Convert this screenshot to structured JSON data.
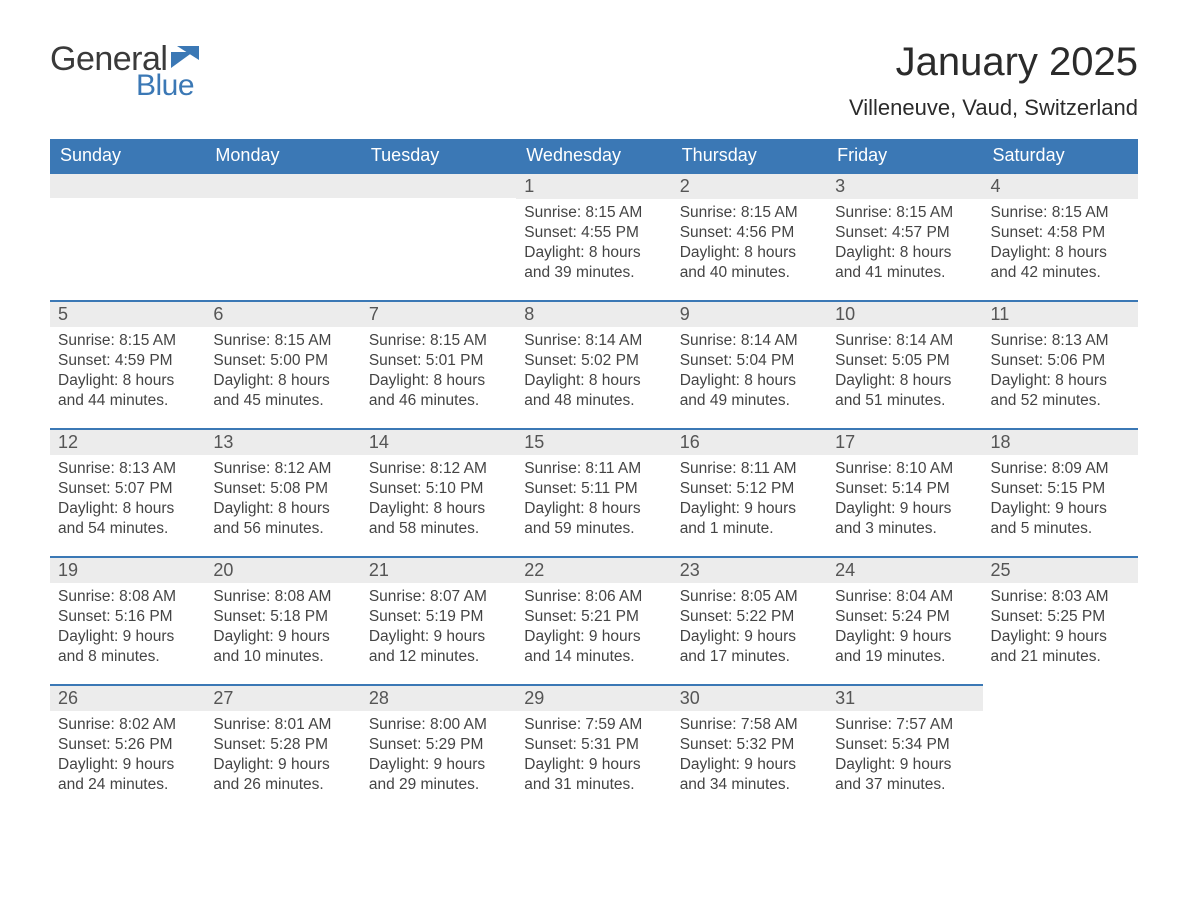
{
  "logo": {
    "general": "General",
    "blue": "Blue"
  },
  "header": {
    "title": "January 2025",
    "location": "Villeneuve, Vaud, Switzerland"
  },
  "colors": {
    "header_blue": "#3b78b5",
    "daynum_bg": "#ececec",
    "text_header": "#ffffff",
    "page_bg": "#ffffff"
  },
  "weekdays": [
    "Sunday",
    "Monday",
    "Tuesday",
    "Wednesday",
    "Thursday",
    "Friday",
    "Saturday"
  ],
  "weeks": [
    [
      null,
      null,
      null,
      {
        "day": "1",
        "sunrise": "Sunrise: 8:15 AM",
        "sunset": "Sunset: 4:55 PM",
        "daylight": "Daylight: 8 hours and 39 minutes."
      },
      {
        "day": "2",
        "sunrise": "Sunrise: 8:15 AM",
        "sunset": "Sunset: 4:56 PM",
        "daylight": "Daylight: 8 hours and 40 minutes."
      },
      {
        "day": "3",
        "sunrise": "Sunrise: 8:15 AM",
        "sunset": "Sunset: 4:57 PM",
        "daylight": "Daylight: 8 hours and 41 minutes."
      },
      {
        "day": "4",
        "sunrise": "Sunrise: 8:15 AM",
        "sunset": "Sunset: 4:58 PM",
        "daylight": "Daylight: 8 hours and 42 minutes."
      }
    ],
    [
      {
        "day": "5",
        "sunrise": "Sunrise: 8:15 AM",
        "sunset": "Sunset: 4:59 PM",
        "daylight": "Daylight: 8 hours and 44 minutes."
      },
      {
        "day": "6",
        "sunrise": "Sunrise: 8:15 AM",
        "sunset": "Sunset: 5:00 PM",
        "daylight": "Daylight: 8 hours and 45 minutes."
      },
      {
        "day": "7",
        "sunrise": "Sunrise: 8:15 AM",
        "sunset": "Sunset: 5:01 PM",
        "daylight": "Daylight: 8 hours and 46 minutes."
      },
      {
        "day": "8",
        "sunrise": "Sunrise: 8:14 AM",
        "sunset": "Sunset: 5:02 PM",
        "daylight": "Daylight: 8 hours and 48 minutes."
      },
      {
        "day": "9",
        "sunrise": "Sunrise: 8:14 AM",
        "sunset": "Sunset: 5:04 PM",
        "daylight": "Daylight: 8 hours and 49 minutes."
      },
      {
        "day": "10",
        "sunrise": "Sunrise: 8:14 AM",
        "sunset": "Sunset: 5:05 PM",
        "daylight": "Daylight: 8 hours and 51 minutes."
      },
      {
        "day": "11",
        "sunrise": "Sunrise: 8:13 AM",
        "sunset": "Sunset: 5:06 PM",
        "daylight": "Daylight: 8 hours and 52 minutes."
      }
    ],
    [
      {
        "day": "12",
        "sunrise": "Sunrise: 8:13 AM",
        "sunset": "Sunset: 5:07 PM",
        "daylight": "Daylight: 8 hours and 54 minutes."
      },
      {
        "day": "13",
        "sunrise": "Sunrise: 8:12 AM",
        "sunset": "Sunset: 5:08 PM",
        "daylight": "Daylight: 8 hours and 56 minutes."
      },
      {
        "day": "14",
        "sunrise": "Sunrise: 8:12 AM",
        "sunset": "Sunset: 5:10 PM",
        "daylight": "Daylight: 8 hours and 58 minutes."
      },
      {
        "day": "15",
        "sunrise": "Sunrise: 8:11 AM",
        "sunset": "Sunset: 5:11 PM",
        "daylight": "Daylight: 8 hours and 59 minutes."
      },
      {
        "day": "16",
        "sunrise": "Sunrise: 8:11 AM",
        "sunset": "Sunset: 5:12 PM",
        "daylight": "Daylight: 9 hours and 1 minute."
      },
      {
        "day": "17",
        "sunrise": "Sunrise: 8:10 AM",
        "sunset": "Sunset: 5:14 PM",
        "daylight": "Daylight: 9 hours and 3 minutes."
      },
      {
        "day": "18",
        "sunrise": "Sunrise: 8:09 AM",
        "sunset": "Sunset: 5:15 PM",
        "daylight": "Daylight: 9 hours and 5 minutes."
      }
    ],
    [
      {
        "day": "19",
        "sunrise": "Sunrise: 8:08 AM",
        "sunset": "Sunset: 5:16 PM",
        "daylight": "Daylight: 9 hours and 8 minutes."
      },
      {
        "day": "20",
        "sunrise": "Sunrise: 8:08 AM",
        "sunset": "Sunset: 5:18 PM",
        "daylight": "Daylight: 9 hours and 10 minutes."
      },
      {
        "day": "21",
        "sunrise": "Sunrise: 8:07 AM",
        "sunset": "Sunset: 5:19 PM",
        "daylight": "Daylight: 9 hours and 12 minutes."
      },
      {
        "day": "22",
        "sunrise": "Sunrise: 8:06 AM",
        "sunset": "Sunset: 5:21 PM",
        "daylight": "Daylight: 9 hours and 14 minutes."
      },
      {
        "day": "23",
        "sunrise": "Sunrise: 8:05 AM",
        "sunset": "Sunset: 5:22 PM",
        "daylight": "Daylight: 9 hours and 17 minutes."
      },
      {
        "day": "24",
        "sunrise": "Sunrise: 8:04 AM",
        "sunset": "Sunset: 5:24 PM",
        "daylight": "Daylight: 9 hours and 19 minutes."
      },
      {
        "day": "25",
        "sunrise": "Sunrise: 8:03 AM",
        "sunset": "Sunset: 5:25 PM",
        "daylight": "Daylight: 9 hours and 21 minutes."
      }
    ],
    [
      {
        "day": "26",
        "sunrise": "Sunrise: 8:02 AM",
        "sunset": "Sunset: 5:26 PM",
        "daylight": "Daylight: 9 hours and 24 minutes."
      },
      {
        "day": "27",
        "sunrise": "Sunrise: 8:01 AM",
        "sunset": "Sunset: 5:28 PM",
        "daylight": "Daylight: 9 hours and 26 minutes."
      },
      {
        "day": "28",
        "sunrise": "Sunrise: 8:00 AM",
        "sunset": "Sunset: 5:29 PM",
        "daylight": "Daylight: 9 hours and 29 minutes."
      },
      {
        "day": "29",
        "sunrise": "Sunrise: 7:59 AM",
        "sunset": "Sunset: 5:31 PM",
        "daylight": "Daylight: 9 hours and 31 minutes."
      },
      {
        "day": "30",
        "sunrise": "Sunrise: 7:58 AM",
        "sunset": "Sunset: 5:32 PM",
        "daylight": "Daylight: 9 hours and 34 minutes."
      },
      {
        "day": "31",
        "sunrise": "Sunrise: 7:57 AM",
        "sunset": "Sunset: 5:34 PM",
        "daylight": "Daylight: 9 hours and 37 minutes."
      },
      null
    ]
  ]
}
